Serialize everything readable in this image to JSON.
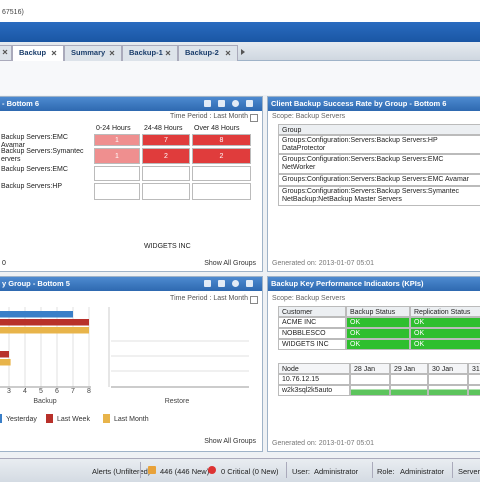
{
  "window_title": "67516)",
  "tabs": [
    "Backup",
    "Summary",
    "Backup-1",
    "Backup-2"
  ],
  "panels": {
    "backup_duration": {
      "title": "- Bottom 6",
      "time_period": "Time Period : Last Month",
      "columns": [
        "0-24 Hours",
        "24-48 Hours",
        "Over 48 Hours"
      ],
      "rows": [
        {
          "label": "Backup Servers:EMC Avamar",
          "cells": [
            "1",
            "7",
            "8"
          ]
        },
        {
          "label": "Backup Servers:Symantec ervers",
          "cells": [
            "1",
            "2",
            "2"
          ]
        },
        {
          "label": "Backup Servers:EMC"
        },
        {
          "label": "Backup Servers:HP"
        }
      ],
      "customer": "WIDGETS INC",
      "footer_left": "0",
      "link": "Show All Groups"
    },
    "success_rate": {
      "title": "Client Backup Success Rate by Group - Bottom 6",
      "scope": "Scope: Backup Servers",
      "column": "Group",
      "rows": [
        "Groups:Configuration:Servers:Backup Servers:HP DataProtector",
        "Groups:Configuration:Servers:Backup Servers:EMC NetWorker",
        "Groups:Configuration:Servers:Backup Servers:EMC Avamar",
        "Groups:Configuration:Servers:Backup Servers:Symantec NetBackup:NetBackup Master Servers"
      ],
      "generated": "Generated on: 2013-01-07 05:01"
    },
    "restore": {
      "title": "y Group - Bottom 5",
      "time_period": "Time Period : Last Month",
      "chart": {
        "type": "bar",
        "subplots": [
          "Backup",
          "Restore"
        ],
        "xlim": [
          0,
          8
        ],
        "xticks": [
          3,
          4,
          5,
          6,
          7,
          8
        ],
        "series": [
          {
            "name": "Yesterday",
            "color": "#3a7fc8",
            "values": [
              7.0,
              null
            ]
          },
          {
            "name": "Last Week",
            "color": "#b8302a",
            "values": [
              8.0,
              3.0
            ]
          },
          {
            "name": "Last Month",
            "color": "#e8b44a",
            "values": [
              8.0,
              3.1
            ]
          }
        ]
      },
      "link": "Show All Groups"
    },
    "kpi": {
      "title": "Backup Key Performance Indicators (KPIs)",
      "scope": "Scope: Backup Servers",
      "columns": [
        "Customer",
        "Backup Status",
        "Replication Status"
      ],
      "rows": [
        [
          "ACME INC",
          "OK",
          "OK"
        ],
        [
          "NOBBLESCO",
          "OK",
          "OK"
        ],
        [
          "WIDGETS INC",
          "OK",
          "OK"
        ]
      ],
      "node_columns": [
        "Node",
        "28 Jan",
        "29 Jan",
        "30 Jan",
        "31"
      ],
      "nodes": [
        "10.76.12.15",
        "w2k3sql2k5auto"
      ],
      "generated": "Generated on: 2013-01-07 05:01"
    }
  },
  "status_bar": {
    "alerts_label": "Alerts (Unfiltered):",
    "alerts": "446 (446 New)",
    "critical": "0 Critical (0 New)",
    "user_label": "User:",
    "user": "Administrator",
    "role_label": "Role:",
    "role": "Administrator",
    "server_label": "Server"
  }
}
